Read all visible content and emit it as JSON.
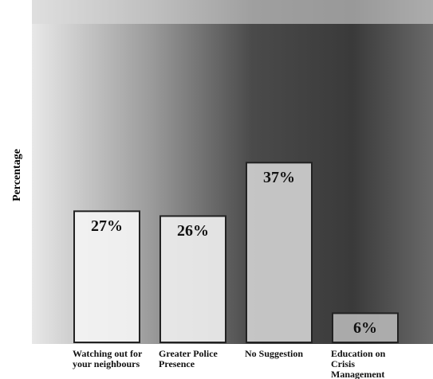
{
  "chart_data": {
    "type": "bar",
    "y_label": "Percentage",
    "categories": [
      "Watching out for your neighbours",
      "Greater Police Presence",
      "No Suggestion",
      "Education on Crisis Management"
    ],
    "values": [
      27,
      26,
      37,
      6
    ],
    "value_labels": [
      "27%",
      "26%",
      "37%",
      "6%"
    ],
    "colors": [
      "#f4f4f4",
      "#eeeeee",
      "#cfcfcf",
      "#b4b4b4"
    ],
    "ylim": [
      0,
      70
    ]
  }
}
